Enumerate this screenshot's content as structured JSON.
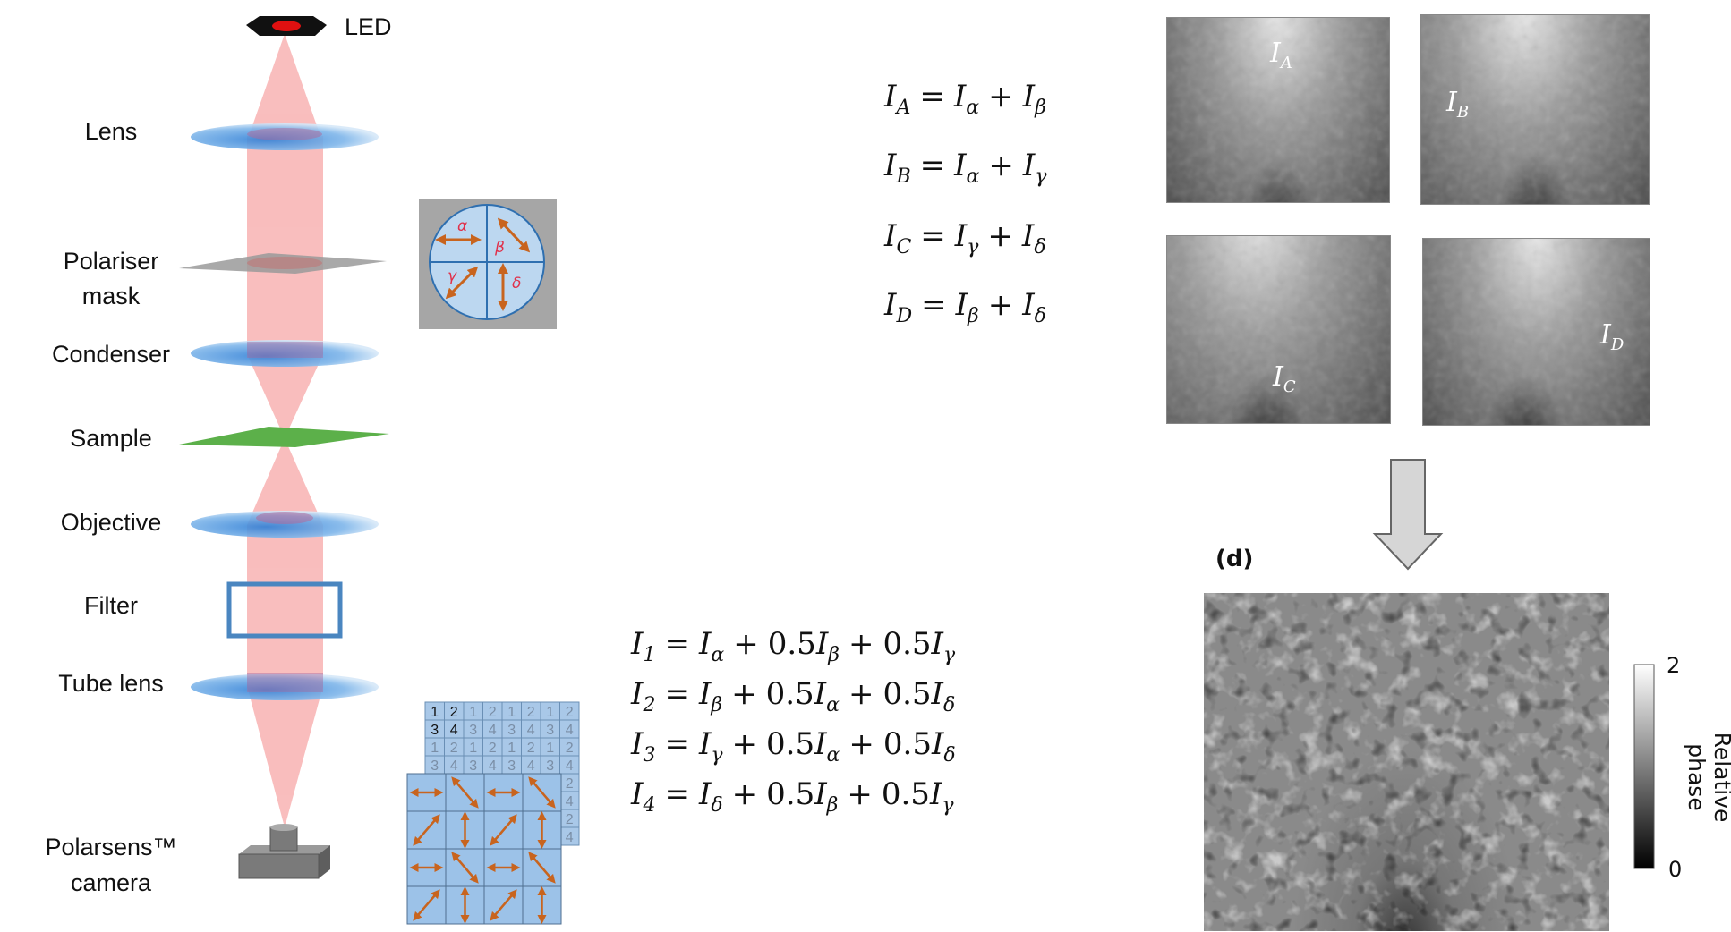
{
  "labels": {
    "led": "LED",
    "lens": "Lens",
    "polariser_line1": "Polariser",
    "polariser_line2": "mask",
    "condenser": "Condenser",
    "sample": "Sample",
    "objective": "Objective",
    "filter": "Filter",
    "tube_lens": "Tube  lens",
    "camera_line1": "Polarsens™",
    "camera_line2": "camera"
  },
  "polariser_mask": {
    "quadrants": [
      "α",
      "β",
      "γ",
      "δ"
    ],
    "colors": {
      "background": "#a6a6a6",
      "disc": "#bcd7f0",
      "arrow": "#c8641e",
      "greek": "#e0304a",
      "line": "#2e6fb0"
    }
  },
  "pixel_grid": {
    "numbers": [
      [
        "1",
        "2"
      ],
      [
        "3",
        "4"
      ]
    ],
    "arrow_pattern": [
      [
        "horizontal",
        "diagonal-down"
      ],
      [
        "diagonal-up",
        "vertical"
      ]
    ]
  },
  "equations_abcd": [
    [
      {
        "v": "I",
        "s": "A"
      },
      {
        "op": "="
      },
      {
        "v": "I",
        "s": "α"
      },
      {
        "op": "+"
      },
      {
        "v": "I",
        "s": "β"
      }
    ],
    [
      {
        "v": "I",
        "s": "B"
      },
      {
        "op": "="
      },
      {
        "v": "I",
        "s": "α"
      },
      {
        "op": "+"
      },
      {
        "v": "I",
        "s": "γ"
      }
    ],
    [
      {
        "v": "I",
        "s": "C"
      },
      {
        "op": "="
      },
      {
        "v": "I",
        "s": "γ"
      },
      {
        "op": "+"
      },
      {
        "v": "I",
        "s": "δ"
      }
    ],
    [
      {
        "v": "I",
        "s": "D"
      },
      {
        "op": "="
      },
      {
        "v": "I",
        "s": "β"
      },
      {
        "op": "+"
      },
      {
        "v": "I",
        "s": "δ"
      }
    ]
  ],
  "equations_1234": [
    [
      {
        "v": "I",
        "s": "1"
      },
      {
        "op": "="
      },
      {
        "v": "I",
        "s": "α"
      },
      {
        "op": "+"
      },
      {
        "c": "0.5"
      },
      {
        "v": "I",
        "s": "β"
      },
      {
        "op": "+"
      },
      {
        "c": "0.5"
      },
      {
        "v": "I",
        "s": "γ"
      }
    ],
    [
      {
        "v": "I",
        "s": "2"
      },
      {
        "op": "="
      },
      {
        "v": "I",
        "s": "β"
      },
      {
        "op": "+"
      },
      {
        "c": "0.5"
      },
      {
        "v": "I",
        "s": "α"
      },
      {
        "op": "+"
      },
      {
        "c": "0.5"
      },
      {
        "v": "I",
        "s": "δ"
      }
    ],
    [
      {
        "v": "I",
        "s": "3"
      },
      {
        "op": "="
      },
      {
        "v": "I",
        "s": "γ"
      },
      {
        "op": "+"
      },
      {
        "c": "0.5"
      },
      {
        "v": "I",
        "s": "α"
      },
      {
        "op": "+"
      },
      {
        "c": "0.5"
      },
      {
        "v": "I",
        "s": "δ"
      }
    ],
    [
      {
        "v": "I",
        "s": "4"
      },
      {
        "op": "="
      },
      {
        "v": "I",
        "s": "δ"
      },
      {
        "op": "+"
      },
      {
        "c": "0.5"
      },
      {
        "v": "I",
        "s": "β"
      },
      {
        "op": "+"
      },
      {
        "c": "0.5"
      },
      {
        "v": "I",
        "s": "γ"
      }
    ]
  ],
  "micrographs": [
    {
      "label": "I",
      "sub": "A"
    },
    {
      "label": "I",
      "sub": "B"
    },
    {
      "label": "I",
      "sub": "C"
    },
    {
      "label": "I",
      "sub": "D"
    }
  ],
  "result": {
    "panel_label": "(d)",
    "colorbar": {
      "max": "2",
      "min": "0",
      "label": "Relative phase"
    }
  },
  "colors": {
    "beam": "#f7a8a8",
    "lens": "#3d8ad8",
    "sample": "#5cb04a",
    "filter": "#4a86c0",
    "camera": "#7a7a7a"
  }
}
